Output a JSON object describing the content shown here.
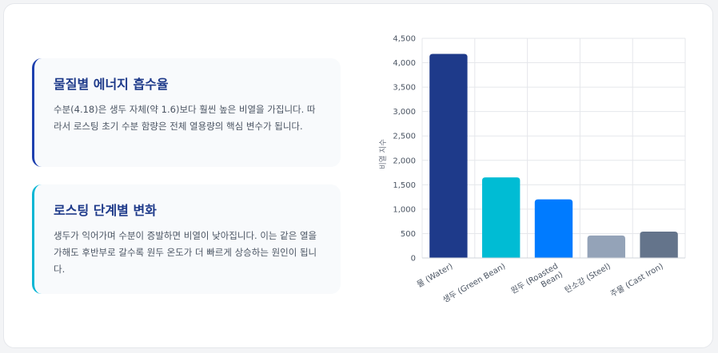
{
  "cards": [
    {
      "title": "물질별 에너지 흡수율",
      "body": "수분(4.18)은 생두 자체(약 1.6)보다 훨씬 높은 비열을 가집니다. 따라서 로스팅 초기 수분 함량은 전체 열용량의 핵심 변수가 됩니다."
    },
    {
      "title": "로스팅 단계별 변화",
      "body": "생두가 익어가며 수분이 증발하면 비열이 낮아집니다. 이는 같은 열을 가해도 후반부로 갈수록 원두 온도가 더 빠르게 상승하는 원인이 됩니다."
    }
  ],
  "chart_data": {
    "type": "bar",
    "title": "",
    "xlabel": "",
    "ylabel": "비열 지수",
    "ylim": [
      0,
      4500
    ],
    "yticks": [
      0,
      500,
      1000,
      1500,
      2000,
      2500,
      3000,
      3500,
      4000,
      4500
    ],
    "ytick_labels": [
      "0",
      "500",
      "1,000",
      "1,500",
      "2,000",
      "2,500",
      "3,000",
      "3,500",
      "4,000",
      "4,500"
    ],
    "grid": true,
    "legend": "none",
    "categories": [
      [
        "물 (Water)"
      ],
      [
        "생두 (Green Bean)"
      ],
      [
        "원두 (Roasted",
        "Bean)"
      ],
      [
        "탄소강 (Steel)"
      ],
      [
        "주물 (Cast Iron)"
      ]
    ],
    "values": [
      4180,
      1650,
      1200,
      460,
      540
    ],
    "colors": [
      "#1e3a8a",
      "#00bcd4",
      "#007bff",
      "#94a3b8",
      "#64748b"
    ]
  }
}
